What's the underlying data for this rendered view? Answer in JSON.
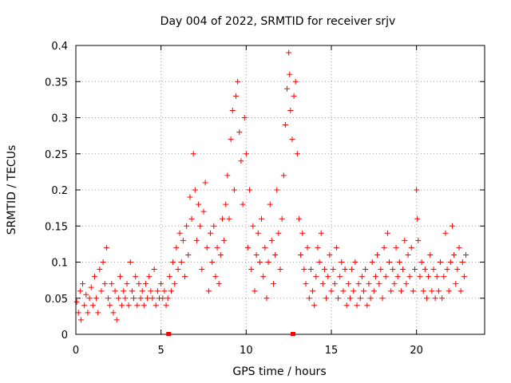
{
  "chart_data": {
    "type": "scatter",
    "title": "Day 004 of 2022, SRMTID for receiver srjv",
    "xlabel": "GPS time / hours",
    "ylabel": "SRMTID / TECUs",
    "xlim": [
      0,
      24
    ],
    "ylim": [
      0,
      0.4
    ],
    "xticks": [
      "0",
      "5",
      "10",
      "15",
      "20"
    ],
    "yticks": [
      "0",
      "0.05",
      "0.1",
      "0.15",
      "0.2",
      "0.25",
      "0.3",
      "0.35",
      "0.4"
    ],
    "grid": true,
    "marker": "plus",
    "color": "#ff0000",
    "x_axis_markers": [
      5.45,
      12.75
    ],
    "series": [
      {
        "points": [
          [
            0.05,
            0.045
          ],
          [
            0.15,
            0.03
          ],
          [
            0.25,
            0.06
          ],
          [
            0.3,
            0.02
          ],
          [
            0.4,
            0.07
          ],
          [
            0.5,
            0.04
          ],
          [
            0.6,
            0.055
          ],
          [
            0.7,
            0.03
          ],
          [
            0.8,
            0.05
          ],
          [
            0.9,
            0.065
          ],
          [
            1.0,
            0.04
          ],
          [
            1.1,
            0.08
          ],
          [
            1.2,
            0.05
          ],
          [
            1.3,
            0.03
          ],
          [
            1.4,
            0.09
          ],
          [
            1.5,
            0.06
          ],
          [
            1.6,
            0.1
          ],
          [
            1.7,
            0.07
          ],
          [
            1.8,
            0.12
          ],
          [
            1.9,
            0.05
          ],
          [
            2.0,
            0.04
          ],
          [
            2.1,
            0.07
          ],
          [
            2.2,
            0.03
          ],
          [
            2.3,
            0.06
          ],
          [
            2.4,
            0.02
          ],
          [
            2.5,
            0.05
          ],
          [
            2.6,
            0.08
          ],
          [
            2.7,
            0.04
          ],
          [
            2.8,
            0.06
          ],
          [
            2.9,
            0.05
          ],
          [
            3.0,
            0.07
          ],
          [
            3.1,
            0.04
          ],
          [
            3.2,
            0.1
          ],
          [
            3.3,
            0.06
          ],
          [
            3.4,
            0.05
          ],
          [
            3.5,
            0.08
          ],
          [
            3.6,
            0.04
          ],
          [
            3.7,
            0.07
          ],
          [
            3.8,
            0.05
          ],
          [
            3.9,
            0.06
          ],
          [
            4.0,
            0.04
          ],
          [
            4.1,
            0.07
          ],
          [
            4.2,
            0.05
          ],
          [
            4.3,
            0.08
          ],
          [
            4.4,
            0.06
          ],
          [
            4.5,
            0.05
          ],
          [
            4.6,
            0.09
          ],
          [
            4.7,
            0.04
          ],
          [
            4.8,
            0.06
          ],
          [
            4.9,
            0.05
          ],
          [
            5.0,
            0.07
          ],
          [
            5.1,
            0.05
          ],
          [
            5.2,
            0.06
          ],
          [
            5.3,
            0.04
          ],
          [
            5.4,
            0.05
          ],
          [
            5.5,
            0.08
          ],
          [
            5.6,
            0.06
          ],
          [
            5.7,
            0.1
          ],
          [
            5.8,
            0.07
          ],
          [
            5.9,
            0.12
          ],
          [
            6.0,
            0.09
          ],
          [
            6.1,
            0.14
          ],
          [
            6.2,
            0.1
          ],
          [
            6.3,
            0.13
          ],
          [
            6.4,
            0.08
          ],
          [
            6.5,
            0.15
          ],
          [
            6.6,
            0.11
          ],
          [
            6.7,
            0.19
          ],
          [
            6.8,
            0.16
          ],
          [
            6.9,
            0.25
          ],
          [
            7.0,
            0.2
          ],
          [
            7.1,
            0.13
          ],
          [
            7.2,
            0.18
          ],
          [
            7.3,
            0.15
          ],
          [
            7.4,
            0.09
          ],
          [
            7.5,
            0.17
          ],
          [
            7.6,
            0.21
          ],
          [
            7.7,
            0.12
          ],
          [
            7.8,
            0.06
          ],
          [
            7.9,
            0.14
          ],
          [
            8.0,
            0.1
          ],
          [
            8.1,
            0.15
          ],
          [
            8.2,
            0.08
          ],
          [
            8.3,
            0.12
          ],
          [
            8.4,
            0.07
          ],
          [
            8.5,
            0.11
          ],
          [
            8.6,
            0.16
          ],
          [
            8.7,
            0.13
          ],
          [
            8.8,
            0.18
          ],
          [
            8.9,
            0.22
          ],
          [
            9.0,
            0.16
          ],
          [
            9.1,
            0.27
          ],
          [
            9.2,
            0.31
          ],
          [
            9.3,
            0.2
          ],
          [
            9.4,
            0.33
          ],
          [
            9.5,
            0.35
          ],
          [
            9.6,
            0.28
          ],
          [
            9.7,
            0.24
          ],
          [
            9.8,
            0.18
          ],
          [
            9.9,
            0.3
          ],
          [
            10.0,
            0.25
          ],
          [
            10.1,
            0.12
          ],
          [
            10.2,
            0.2
          ],
          [
            10.3,
            0.09
          ],
          [
            10.4,
            0.15
          ],
          [
            10.5,
            0.06
          ],
          [
            10.6,
            0.11
          ],
          [
            10.7,
            0.14
          ],
          [
            10.8,
            0.1
          ],
          [
            10.9,
            0.16
          ],
          [
            11.0,
            0.08
          ],
          [
            11.1,
            0.12
          ],
          [
            11.2,
            0.05
          ],
          [
            11.3,
            0.1
          ],
          [
            11.4,
            0.18
          ],
          [
            11.5,
            0.13
          ],
          [
            11.6,
            0.07
          ],
          [
            11.7,
            0.11
          ],
          [
            11.8,
            0.2
          ],
          [
            11.9,
            0.14
          ],
          [
            12.0,
            0.09
          ],
          [
            12.1,
            0.16
          ],
          [
            12.2,
            0.22
          ],
          [
            12.3,
            0.29
          ],
          [
            12.4,
            0.34
          ],
          [
            12.5,
            0.39
          ],
          [
            12.55,
            0.36
          ],
          [
            12.6,
            0.31
          ],
          [
            12.7,
            0.27
          ],
          [
            12.8,
            0.33
          ],
          [
            12.9,
            0.35
          ],
          [
            13.0,
            0.25
          ],
          [
            13.1,
            0.16
          ],
          [
            13.2,
            0.11
          ],
          [
            13.3,
            0.14
          ],
          [
            13.4,
            0.09
          ],
          [
            13.5,
            0.07
          ],
          [
            13.6,
            0.12
          ],
          [
            13.7,
            0.05
          ],
          [
            13.8,
            0.09
          ],
          [
            13.9,
            0.06
          ],
          [
            14.0,
            0.04
          ],
          [
            14.1,
            0.08
          ],
          [
            14.2,
            0.12
          ],
          [
            14.3,
            0.1
          ],
          [
            14.4,
            0.14
          ],
          [
            14.5,
            0.07
          ],
          [
            14.6,
            0.09
          ],
          [
            14.7,
            0.05
          ],
          [
            14.8,
            0.08
          ],
          [
            14.9,
            0.11
          ],
          [
            15.0,
            0.06
          ],
          [
            15.1,
            0.09
          ],
          [
            15.2,
            0.07
          ],
          [
            15.3,
            0.12
          ],
          [
            15.4,
            0.05
          ],
          [
            15.5,
            0.08
          ],
          [
            15.6,
            0.1
          ],
          [
            15.7,
            0.06
          ],
          [
            15.8,
            0.09
          ],
          [
            15.9,
            0.04
          ],
          [
            16.0,
            0.07
          ],
          [
            16.1,
            0.05
          ],
          [
            16.2,
            0.09
          ],
          [
            16.3,
            0.06
          ],
          [
            16.4,
            0.1
          ],
          [
            16.5,
            0.04
          ],
          [
            16.6,
            0.07
          ],
          [
            16.7,
            0.05
          ],
          [
            16.8,
            0.08
          ],
          [
            16.9,
            0.06
          ],
          [
            17.0,
            0.09
          ],
          [
            17.1,
            0.04
          ],
          [
            17.2,
            0.07
          ],
          [
            17.3,
            0.05
          ],
          [
            17.4,
            0.1
          ],
          [
            17.5,
            0.06
          ],
          [
            17.6,
            0.08
          ],
          [
            17.7,
            0.11
          ],
          [
            17.8,
            0.07
          ],
          [
            17.9,
            0.09
          ],
          [
            18.0,
            0.05
          ],
          [
            18.1,
            0.12
          ],
          [
            18.2,
            0.08
          ],
          [
            18.3,
            0.14
          ],
          [
            18.4,
            0.1
          ],
          [
            18.5,
            0.06
          ],
          [
            18.6,
            0.09
          ],
          [
            18.7,
            0.07
          ],
          [
            18.8,
            0.12
          ],
          [
            18.9,
            0.08
          ],
          [
            19.0,
            0.1
          ],
          [
            19.1,
            0.06
          ],
          [
            19.2,
            0.09
          ],
          [
            19.3,
            0.13
          ],
          [
            19.4,
            0.07
          ],
          [
            19.5,
            0.11
          ],
          [
            19.6,
            0.08
          ],
          [
            19.7,
            0.12
          ],
          [
            19.8,
            0.06
          ],
          [
            19.9,
            0.09
          ],
          [
            20.0,
            0.2
          ],
          [
            20.05,
            0.16
          ],
          [
            20.1,
            0.13
          ],
          [
            20.2,
            0.08
          ],
          [
            20.3,
            0.1
          ],
          [
            20.4,
            0.06
          ],
          [
            20.5,
            0.09
          ],
          [
            20.6,
            0.05
          ],
          [
            20.7,
            0.08
          ],
          [
            20.8,
            0.11
          ],
          [
            20.9,
            0.06
          ],
          [
            21.0,
            0.09
          ],
          [
            21.1,
            0.05
          ],
          [
            21.2,
            0.08
          ],
          [
            21.3,
            0.06
          ],
          [
            21.4,
            0.1
          ],
          [
            21.5,
            0.05
          ],
          [
            21.6,
            0.08
          ],
          [
            21.7,
            0.14
          ],
          [
            21.8,
            0.09
          ],
          [
            21.9,
            0.06
          ],
          [
            22.0,
            0.1
          ],
          [
            22.1,
            0.15
          ],
          [
            22.2,
            0.11
          ],
          [
            22.3,
            0.07
          ],
          [
            22.4,
            0.09
          ],
          [
            22.5,
            0.12
          ],
          [
            22.6,
            0.06
          ],
          [
            22.7,
            0.1
          ],
          [
            22.8,
            0.08
          ],
          [
            22.9,
            0.11
          ]
        ]
      }
    ]
  }
}
